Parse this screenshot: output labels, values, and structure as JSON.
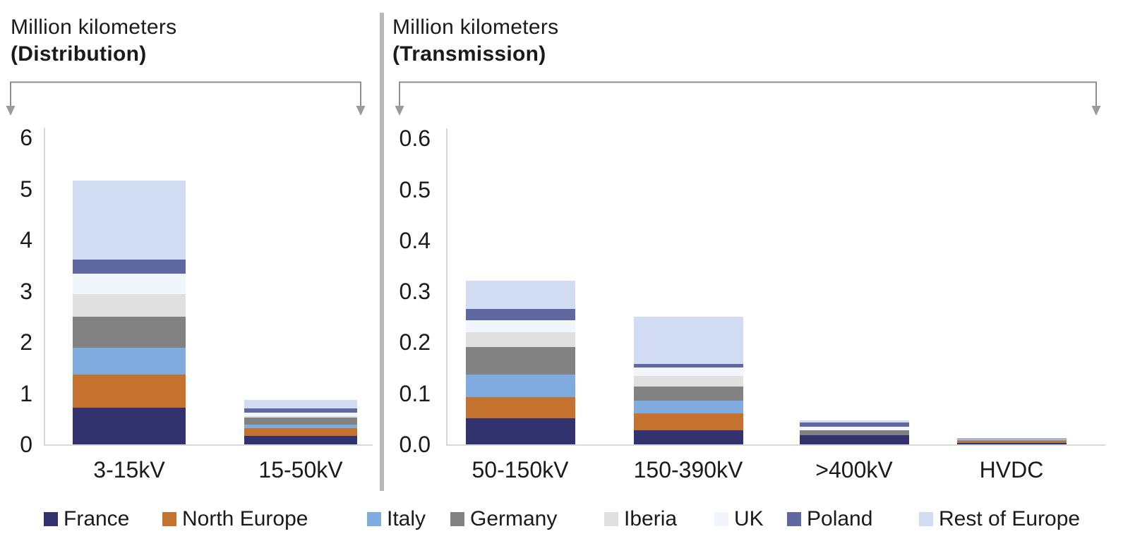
{
  "figure": {
    "background": "#ffffff",
    "text_color": "#1a1a1a",
    "axis_color": "#d9d9d9",
    "arrow_color": "#8f8f8f",
    "divider_color": "#b9b9b9"
  },
  "chart_data": [
    {
      "id": "distribution",
      "type": "bar",
      "stacked": true,
      "title": "Million kilometers",
      "subtitle": "(Distribution)",
      "categories": [
        "3-15kV",
        "15-50kV"
      ],
      "ylim": [
        0,
        6.2
      ],
      "grid": false,
      "y_ticks": {
        "labels": [
          "0",
          "1",
          "2",
          "3",
          "4",
          "5",
          "6"
        ],
        "values": [
          0,
          1,
          2,
          3,
          4,
          5,
          6
        ]
      },
      "series": [
        {
          "name": "France",
          "values": [
            0.72,
            0.17
          ]
        },
        {
          "name": "North Europe",
          "values": [
            0.65,
            0.15
          ]
        },
        {
          "name": "Italy",
          "values": [
            0.52,
            0.06
          ]
        },
        {
          "name": "Germany",
          "values": [
            0.61,
            0.15
          ]
        },
        {
          "name": "Iberia",
          "values": [
            0.44,
            0.02
          ]
        },
        {
          "name": "UK",
          "values": [
            0.4,
            0.07
          ]
        },
        {
          "name": "Poland",
          "values": [
            0.27,
            0.08
          ]
        },
        {
          "name": "Rest of Europe",
          "values": [
            1.55,
            0.17
          ]
        }
      ]
    },
    {
      "id": "transmission",
      "type": "bar",
      "stacked": true,
      "title": "Million kilometers",
      "subtitle": "(Transmission)",
      "categories": [
        "50-150kV",
        "150-390kV",
        ">400kV",
        "HVDC"
      ],
      "ylim": [
        0,
        0.62
      ],
      "grid": false,
      "y_ticks": {
        "labels": [
          "0.0",
          "0.1",
          "0.2",
          "0.3",
          "0.4",
          "0.5",
          "0.6"
        ],
        "values": [
          0,
          0.1,
          0.2,
          0.3,
          0.4,
          0.5,
          0.6
        ]
      },
      "series": [
        {
          "name": "France",
          "values": [
            0.051,
            0.028,
            0.018,
            0.003
          ]
        },
        {
          "name": "North Europe",
          "values": [
            0.042,
            0.033,
            0.0,
            0.002
          ]
        },
        {
          "name": "Italy",
          "values": [
            0.044,
            0.025,
            0.0,
            0.0
          ]
        },
        {
          "name": "Germany",
          "values": [
            0.054,
            0.027,
            0.01,
            0.003
          ]
        },
        {
          "name": "Iberia",
          "values": [
            0.029,
            0.021,
            0.0,
            0.0
          ]
        },
        {
          "name": "UK",
          "values": [
            0.024,
            0.017,
            0.007,
            0.001
          ]
        },
        {
          "name": "Poland",
          "values": [
            0.022,
            0.007,
            0.008,
            0.002
          ]
        },
        {
          "name": "Rest of Europe",
          "values": [
            0.055,
            0.092,
            0.004,
            0.002
          ]
        }
      ]
    }
  ],
  "legend": {
    "position": "bottom",
    "items": [
      {
        "label": "France",
        "color": "#32336e"
      },
      {
        "label": "North Europe",
        "color": "#c4722d"
      },
      {
        "label": "Italy",
        "color": "#7fabde"
      },
      {
        "label": "Germany",
        "color": "#828282"
      },
      {
        "label": "Iberia",
        "color": "#e0e0e0"
      },
      {
        "label": "UK",
        "color": "#f1f5fc"
      },
      {
        "label": "Poland",
        "color": "#5f68a0"
      },
      {
        "label": "Rest of Europe",
        "color": "#d1dcf2"
      }
    ]
  }
}
